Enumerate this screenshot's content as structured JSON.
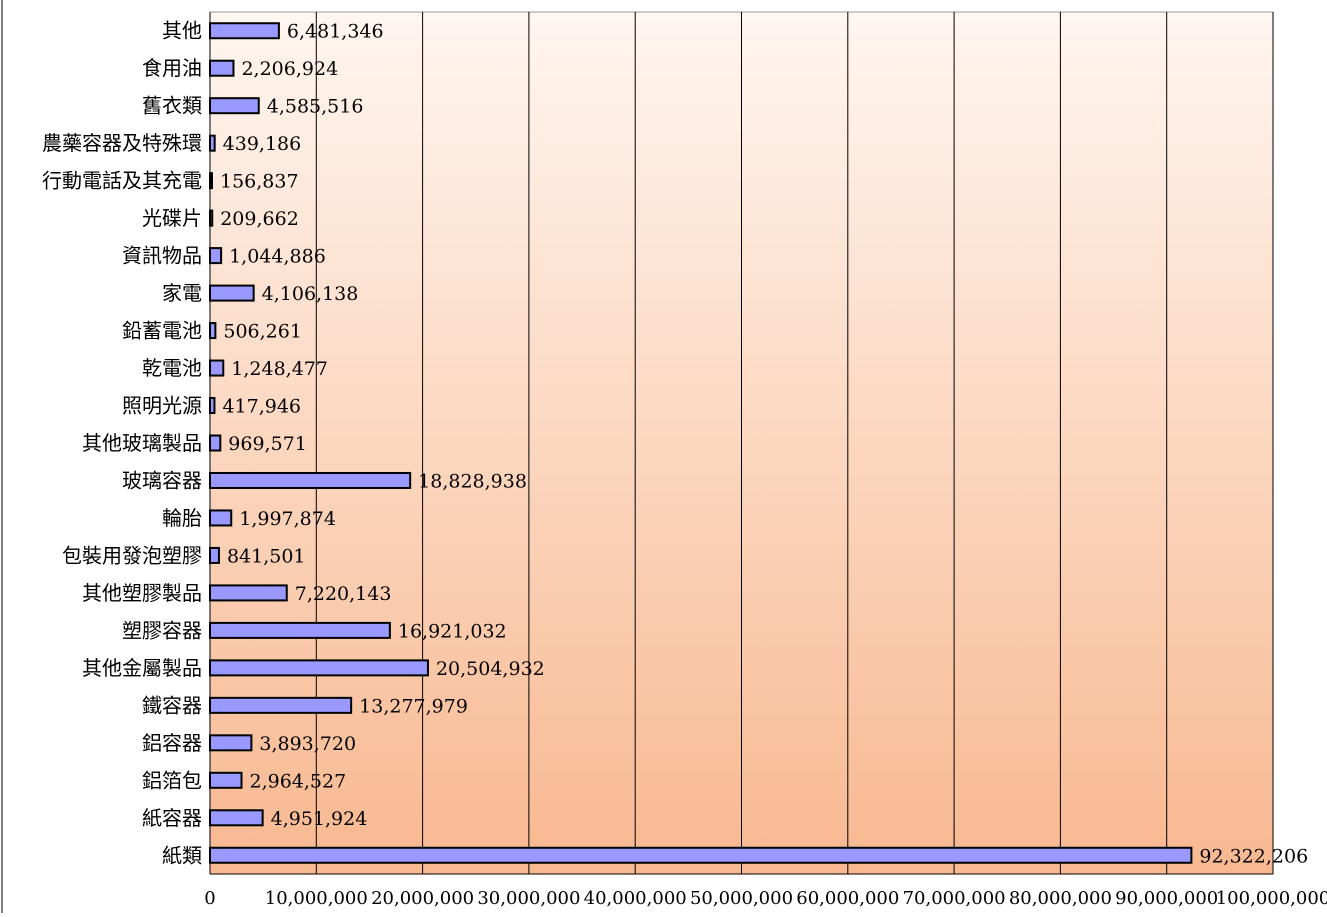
{
  "chart_data": {
    "type": "bar",
    "orientation": "horizontal",
    "categories": [
      "紙類",
      "紙容器",
      "鋁箔包",
      "鋁容器",
      "鐵容器",
      "其他金屬製品",
      "塑膠容器",
      "其他塑膠製品",
      "包裝用發泡塑膠",
      "輪胎",
      "玻璃容器",
      "其他玻璃製品",
      "照明光源",
      "乾電池",
      "鉛蓄電池",
      "家電",
      "資訊物品",
      "光碟片",
      "行動電話及其充電",
      "農藥容器及特殊環",
      "舊衣類",
      "食用油",
      "其他"
    ],
    "values": [
      92322206,
      4951924,
      2964527,
      3893720,
      13277979,
      20504932,
      16921032,
      7220143,
      841501,
      1997874,
      18828938,
      969571,
      417946,
      1248477,
      506261,
      4106138,
      1044886,
      209662,
      156837,
      439186,
      4585516,
      2206924,
      6481346
    ],
    "data_labels": [
      "92,322,206",
      "4,951,924",
      "2,964,527",
      "3,893,720",
      "13,277,979",
      "20,504,932",
      "16,921,032",
      "7,220,143",
      "841,501",
      "1,997,874",
      "18,828,938",
      "969,571",
      "417,946",
      "1,248,477",
      "506,261",
      "4,106,138",
      "1,044,886",
      "209,662",
      "156,837",
      "439,186",
      "4,585,516",
      "2,206,924",
      "6,481,346"
    ],
    "xlim": [
      0,
      100000000
    ],
    "x_ticks": [
      0,
      10000000,
      20000000,
      30000000,
      40000000,
      50000000,
      60000000,
      70000000,
      80000000,
      90000000,
      100000000
    ],
    "x_tick_labels": [
      "0",
      "10,000,000",
      "20,000,000",
      "30,000,000",
      "40,000,000",
      "50,000,000",
      "60,000,000",
      "70,000,000",
      "80,000,000",
      "90,000,000",
      "100,000,000"
    ],
    "grid": "vertical",
    "legend": "none",
    "title": "",
    "xlabel": "",
    "ylabel": "",
    "colors": {
      "bar_fill": "#9999ff",
      "bar_stroke": "#000000",
      "plot_bg_top": "#fff6f0",
      "plot_bg_bottom": "#f8b890",
      "grid": "#000000"
    }
  }
}
